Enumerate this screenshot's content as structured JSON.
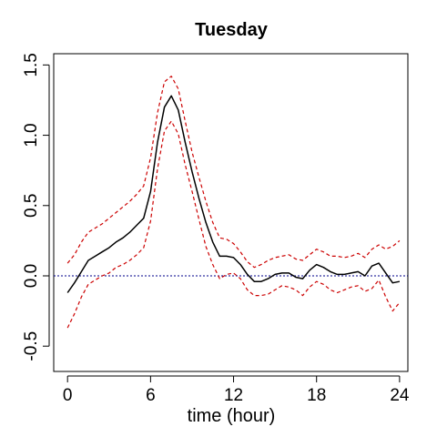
{
  "chart_data": {
    "type": "line",
    "title": "Tuesday",
    "xlabel": "time (hour)",
    "ylabel": "",
    "xlim": [
      -1,
      24.6
    ],
    "ylim": [
      -0.68,
      1.58
    ],
    "xticks": [
      0,
      6,
      12,
      18,
      24
    ],
    "yticks": [
      -0.5,
      0.0,
      0.5,
      1.0,
      1.5
    ],
    "ytick_labels": [
      "-0.5",
      "0.0",
      "0.5",
      "1.0",
      "1.5"
    ],
    "reference_line": {
      "y": 0,
      "color": "#00008b"
    },
    "grid": false,
    "series": [
      {
        "role": "estimate",
        "color": "#000000",
        "style": "solid",
        "x": [
          0,
          0.5,
          1,
          1.5,
          2,
          2.5,
          3,
          3.5,
          4,
          4.5,
          5,
          5.5,
          6,
          6.5,
          7,
          7.5,
          8,
          8.5,
          9,
          9.5,
          10,
          10.5,
          11,
          11.5,
          12,
          12.5,
          13,
          13.5,
          14,
          14.5,
          15,
          15.5,
          16,
          16.5,
          17,
          17.5,
          18,
          18.5,
          19,
          19.5,
          20,
          20.5,
          21,
          21.5,
          22,
          22.5,
          23,
          23.5,
          24
        ],
        "y": [
          -0.12,
          -0.05,
          0.03,
          0.11,
          0.14,
          0.17,
          0.2,
          0.24,
          0.27,
          0.31,
          0.36,
          0.41,
          0.6,
          0.95,
          1.2,
          1.28,
          1.18,
          0.95,
          0.74,
          0.55,
          0.38,
          0.24,
          0.14,
          0.14,
          0.13,
          0.08,
          0.01,
          -0.04,
          -0.04,
          -0.02,
          0.01,
          0.02,
          0.02,
          -0.01,
          -0.02,
          0.04,
          0.08,
          0.06,
          0.03,
          0.01,
          0.01,
          0.02,
          0.03,
          0.0,
          0.07,
          0.09,
          0.02,
          -0.05,
          -0.04
        ]
      },
      {
        "role": "upper",
        "color": "#cc0000",
        "style": "dashed",
        "x": [
          0,
          0.5,
          1,
          1.5,
          2,
          2.5,
          3,
          3.5,
          4,
          4.5,
          5,
          5.5,
          6,
          6.5,
          7,
          7.5,
          8,
          8.5,
          9,
          9.5,
          10,
          10.5,
          11,
          11.5,
          12,
          12.5,
          13,
          13.5,
          14,
          14.5,
          15,
          15.5,
          16,
          16.5,
          17,
          17.5,
          18,
          18.5,
          19,
          19.5,
          20,
          20.5,
          21,
          21.5,
          22,
          22.5,
          23,
          23.5,
          24
        ],
        "y": [
          0.09,
          0.15,
          0.24,
          0.31,
          0.34,
          0.37,
          0.41,
          0.45,
          0.49,
          0.53,
          0.58,
          0.64,
          0.84,
          1.16,
          1.38,
          1.42,
          1.33,
          1.1,
          0.88,
          0.7,
          0.53,
          0.38,
          0.27,
          0.26,
          0.23,
          0.17,
          0.1,
          0.06,
          0.08,
          0.11,
          0.13,
          0.14,
          0.15,
          0.12,
          0.11,
          0.15,
          0.19,
          0.17,
          0.14,
          0.14,
          0.13,
          0.14,
          0.16,
          0.13,
          0.19,
          0.22,
          0.19,
          0.21,
          0.25
        ]
      },
      {
        "role": "lower",
        "color": "#cc0000",
        "style": "dashed",
        "x": [
          0,
          0.5,
          1,
          1.5,
          2,
          2.5,
          3,
          3.5,
          4,
          4.5,
          5,
          5.5,
          6,
          6.5,
          7,
          7.5,
          8,
          8.5,
          9,
          9.5,
          10,
          10.5,
          11,
          11.5,
          12,
          12.5,
          13,
          13.5,
          14,
          14.5,
          15,
          15.5,
          16,
          16.5,
          17,
          17.5,
          18,
          18.5,
          19,
          19.5,
          20,
          20.5,
          21,
          21.5,
          22,
          22.5,
          23,
          23.5,
          24
        ],
        "y": [
          -0.37,
          -0.27,
          -0.15,
          -0.06,
          -0.03,
          0.0,
          0.02,
          0.06,
          0.08,
          0.11,
          0.15,
          0.2,
          0.39,
          0.76,
          1.03,
          1.1,
          1.01,
          0.79,
          0.6,
          0.4,
          0.21,
          0.08,
          -0.02,
          0.01,
          0.02,
          -0.02,
          -0.1,
          -0.14,
          -0.14,
          -0.13,
          -0.1,
          -0.07,
          -0.08,
          -0.1,
          -0.14,
          -0.08,
          -0.04,
          -0.06,
          -0.1,
          -0.12,
          -0.1,
          -0.08,
          -0.07,
          -0.11,
          -0.09,
          -0.03,
          -0.15,
          -0.25,
          -0.19
        ]
      }
    ]
  }
}
